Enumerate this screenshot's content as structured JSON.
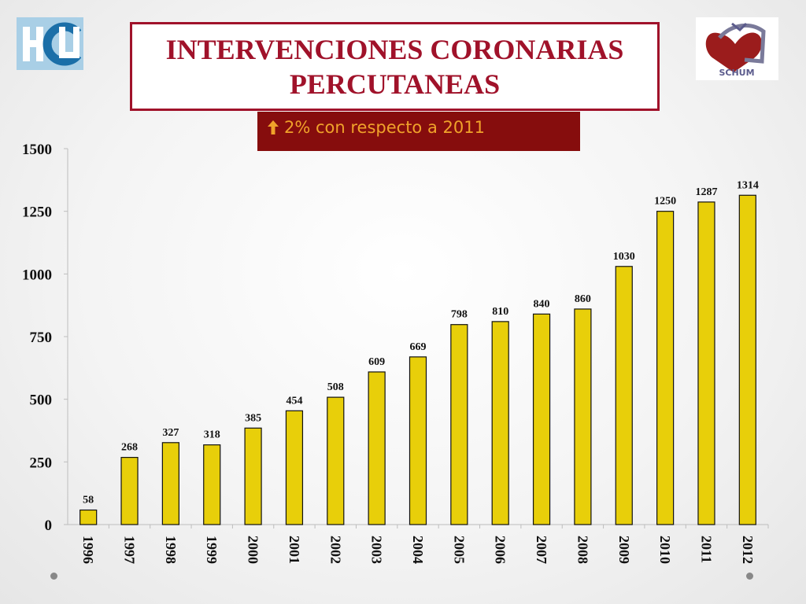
{
  "slide": {
    "title": "INTERVENCIONES CORONARIAS PERCUTANEAS",
    "subtitle_icon": "arrow-up-icon",
    "subtitle": "2% con respecto a 2011",
    "logo_left_text": "HU",
    "logo_right_text": "SCHUM",
    "colors": {
      "title": "#a0122a",
      "subtitle_bg": "#860d0d",
      "subtitle_text": "#f0a22a",
      "bar_fill": "#e8cf0a",
      "bar_stroke": "#111111"
    }
  },
  "chart_data": {
    "type": "bar",
    "categories": [
      "1996",
      "1997",
      "1998",
      "1999",
      "2000",
      "2001",
      "2002",
      "2003",
      "2004",
      "2005",
      "2006",
      "2007",
      "2008",
      "2009",
      "2010",
      "2011",
      "2012"
    ],
    "values": [
      58,
      268,
      327,
      318,
      385,
      454,
      508,
      609,
      669,
      798,
      810,
      840,
      860,
      1030,
      1250,
      1287,
      1314
    ],
    "ylim": [
      0,
      1500
    ],
    "yticks": [
      0,
      250,
      500,
      750,
      1000,
      1250,
      1500
    ],
    "grid": false,
    "legend": "none",
    "data_labels": true,
    "xlabel": "",
    "ylabel": ""
  }
}
